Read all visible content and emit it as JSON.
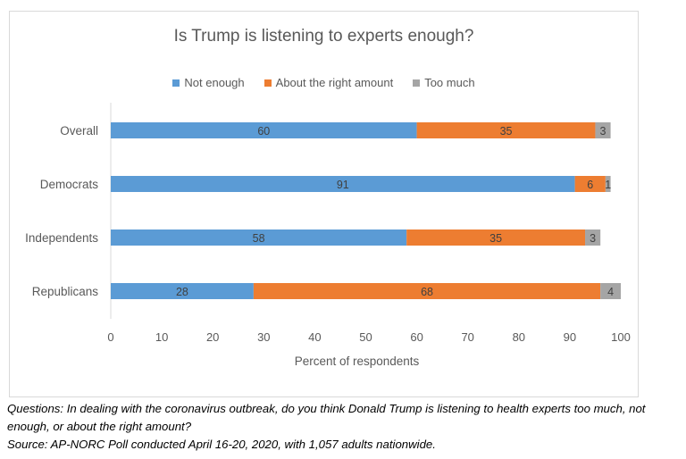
{
  "chart_data": {
    "type": "bar",
    "orientation": "horizontal",
    "stacked": true,
    "title": "Is Trump is listening to experts enough?",
    "xlabel": "Percent of respondents",
    "ylabel": "",
    "xlim": [
      0,
      100
    ],
    "xticks": [
      "0",
      "10",
      "20",
      "30",
      "40",
      "50",
      "60",
      "70",
      "80",
      "90",
      "100"
    ],
    "categories": [
      "Overall",
      "Democrats",
      "Independents",
      "Republicans"
    ],
    "series": [
      {
        "name": "Not enough",
        "color": "#5b9bd5",
        "values": [
          60,
          91,
          58,
          28
        ]
      },
      {
        "name": "About the right amount",
        "color": "#ed7d31",
        "values": [
          35,
          6,
          35,
          68
        ]
      },
      {
        "name": "Too much",
        "color": "#a5a5a5",
        "values": [
          3,
          1,
          3,
          4
        ]
      }
    ],
    "legend_position": "top",
    "grid": false
  },
  "caption": {
    "question": "Questions: In dealing with the coronavirus outbreak, do you think Donald Trump is listening to health experts too much, not enough, or about the right amount?",
    "source": "Source: AP-NORC Poll conducted April 16-20, 2020, with 1,057 adults nationwide."
  }
}
